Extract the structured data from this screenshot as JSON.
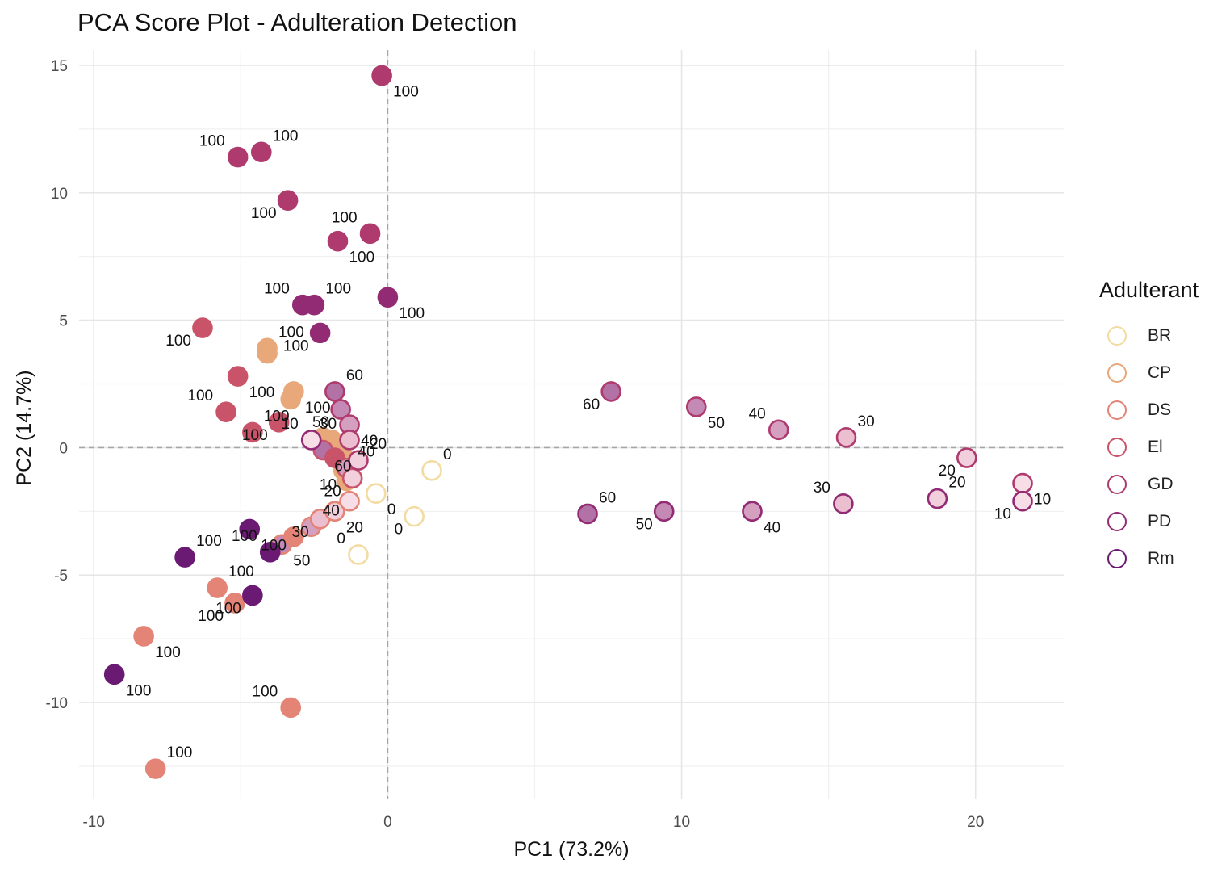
{
  "chart_data": {
    "type": "scatter",
    "title": "PCA Score Plot - Adulteration Detection",
    "xlabel": "PC1 (73.2%)",
    "ylabel": "PC2 (14.7%)",
    "xlim": [
      -10.5,
      23
    ],
    "ylim": [
      -13.8,
      15.6
    ],
    "xticks": [
      -10,
      0,
      10,
      20
    ],
    "xtick_labels": [
      "-10",
      "0",
      "10",
      "20"
    ],
    "yticks": [
      -10,
      -5,
      0,
      5,
      10,
      15
    ],
    "ytick_labels": [
      "-10",
      "-5",
      "0",
      "5",
      "10",
      "15"
    ],
    "grid": true,
    "reference_lines": {
      "x": 0,
      "y": 0,
      "style": "dashed"
    },
    "legend": {
      "title": "Adulterant",
      "placement": "right",
      "entries": [
        {
          "name": "BR",
          "color": "#f2dca1"
        },
        {
          "name": "CP",
          "color": "#e8a87a"
        },
        {
          "name": "DS",
          "color": "#e38476"
        },
        {
          "name": "El",
          "color": "#c9546a"
        },
        {
          "name": "GD",
          "color": "#ae3a6e"
        },
        {
          "name": "PD",
          "color": "#932b74"
        },
        {
          "name": "Rm",
          "color": "#6b1a73"
        }
      ]
    },
    "fill_colors": {
      "0": "#ffffff",
      "10": "#f7dde6",
      "20": "#f1cfdc",
      "30": "#ebbed0",
      "40": "#d59fc0",
      "50": "#c48ab5",
      "60": "#b272a6"
    },
    "series": [
      {
        "name": "BR",
        "points": [
          {
            "x": 1.5,
            "y": -0.9,
            "label": "0"
          },
          {
            "x": 0.9,
            "y": -2.7,
            "label": "0"
          },
          {
            "x": -0.4,
            "y": -1.8,
            "label": "0"
          },
          {
            "x": -1.0,
            "y": -4.2,
            "label": "0"
          }
        ]
      },
      {
        "name": "CP",
        "points": [
          {
            "x": -4.1,
            "y": 3.9,
            "label": "100"
          },
          {
            "x": -4.1,
            "y": 3.7,
            "label": ""
          },
          {
            "x": -3.2,
            "y": 2.2,
            "label": "100"
          },
          {
            "x": -3.3,
            "y": 1.9,
            "label": ""
          },
          {
            "x": -2.2,
            "y": 0.4,
            "label": ""
          },
          {
            "x": -1.9,
            "y": 0.3,
            "label": ""
          },
          {
            "x": -1.7,
            "y": 0.1,
            "label": ""
          },
          {
            "x": -1.5,
            "y": -0.4,
            "label": ""
          },
          {
            "x": -1.5,
            "y": -0.9,
            "label": ""
          },
          {
            "x": -1.4,
            "y": -1.3,
            "label": ""
          }
        ]
      },
      {
        "name": "DS",
        "points": [
          {
            "x": -3.6,
            "y": -3.8,
            "label": "50"
          },
          {
            "x": -3.2,
            "y": -3.5,
            "label": ""
          },
          {
            "x": -2.6,
            "y": -3.1,
            "label": "40"
          },
          {
            "x": -2.3,
            "y": -2.8,
            "label": "30"
          },
          {
            "x": -1.8,
            "y": -2.5,
            "label": "20"
          },
          {
            "x": -1.3,
            "y": -2.1,
            "label": "10"
          },
          {
            "x": -5.8,
            "y": -5.5,
            "label": "100"
          },
          {
            "x": -5.2,
            "y": -6.1,
            "label": "100"
          },
          {
            "x": -8.3,
            "y": -7.4,
            "label": "100"
          },
          {
            "x": -3.3,
            "y": -10.2,
            "label": "100"
          },
          {
            "x": -7.9,
            "y": -12.6,
            "label": "100"
          }
        ]
      },
      {
        "name": "El",
        "points": [
          {
            "x": -6.3,
            "y": 4.7,
            "label": "100"
          },
          {
            "x": -5.1,
            "y": 2.8,
            "label": "100"
          },
          {
            "x": -5.5,
            "y": 1.4,
            "label": "100"
          },
          {
            "x": -4.6,
            "y": 0.6,
            "label": "100"
          },
          {
            "x": -3.7,
            "y": 1.0,
            "label": "100"
          },
          {
            "x": -2.2,
            "y": -0.1,
            "label": "60"
          },
          {
            "x": -1.8,
            "y": -0.4,
            "label": ""
          },
          {
            "x": -1.4,
            "y": -0.8,
            "label": "40"
          },
          {
            "x": -1.2,
            "y": -1.2,
            "label": "20"
          }
        ]
      },
      {
        "name": "GD",
        "points": [
          {
            "x": -0.2,
            "y": 14.6,
            "label": "100"
          },
          {
            "x": -5.1,
            "y": 11.4,
            "label": "100"
          },
          {
            "x": -4.3,
            "y": 11.6,
            "label": "100"
          },
          {
            "x": -3.4,
            "y": 9.7,
            "label": "100"
          },
          {
            "x": -1.7,
            "y": 8.1,
            "label": "100"
          },
          {
            "x": -0.6,
            "y": 8.4,
            "label": "100"
          },
          {
            "x": -1.8,
            "y": 2.2,
            "label": "60"
          },
          {
            "x": -1.6,
            "y": 1.5,
            "label": "50"
          },
          {
            "x": -1.3,
            "y": 0.9,
            "label": "40"
          },
          {
            "x": -1.3,
            "y": 0.3,
            "label": "30"
          },
          {
            "x": -1.0,
            "y": -0.5,
            "label": "20"
          },
          {
            "x": 7.6,
            "y": 2.2,
            "label": "60"
          },
          {
            "x": 10.5,
            "y": 1.6,
            "label": "50"
          },
          {
            "x": 13.3,
            "y": 0.7,
            "label": "40"
          },
          {
            "x": 15.6,
            "y": 0.4,
            "label": "30"
          },
          {
            "x": 19.7,
            "y": -0.4,
            "label": "20"
          },
          {
            "x": 21.6,
            "y": -1.4,
            "label": "10"
          }
        ]
      },
      {
        "name": "PD",
        "points": [
          {
            "x": -2.9,
            "y": 5.6,
            "label": "100"
          },
          {
            "x": -2.5,
            "y": 5.6,
            "label": "100"
          },
          {
            "x": -2.3,
            "y": 4.5,
            "label": "100"
          },
          {
            "x": 0.0,
            "y": 5.9,
            "label": "100"
          },
          {
            "x": -2.6,
            "y": 0.3,
            "label": "10"
          },
          {
            "x": 6.8,
            "y": -2.6,
            "label": "60"
          },
          {
            "x": 9.4,
            "y": -2.5,
            "label": "50"
          },
          {
            "x": 12.4,
            "y": -2.5,
            "label": "40"
          },
          {
            "x": 15.5,
            "y": -2.2,
            "label": "30"
          },
          {
            "x": 18.7,
            "y": -2.0,
            "label": "20"
          },
          {
            "x": 21.6,
            "y": -2.1,
            "label": "10"
          }
        ]
      },
      {
        "name": "Rm",
        "points": [
          {
            "x": -4.7,
            "y": -3.2,
            "label": "100"
          },
          {
            "x": -4.0,
            "y": -4.1,
            "label": "100"
          },
          {
            "x": -6.9,
            "y": -4.3,
            "label": "100"
          },
          {
            "x": -4.6,
            "y": -5.8,
            "label": "100"
          },
          {
            "x": -9.3,
            "y": -8.9,
            "label": "100"
          }
        ]
      }
    ]
  }
}
